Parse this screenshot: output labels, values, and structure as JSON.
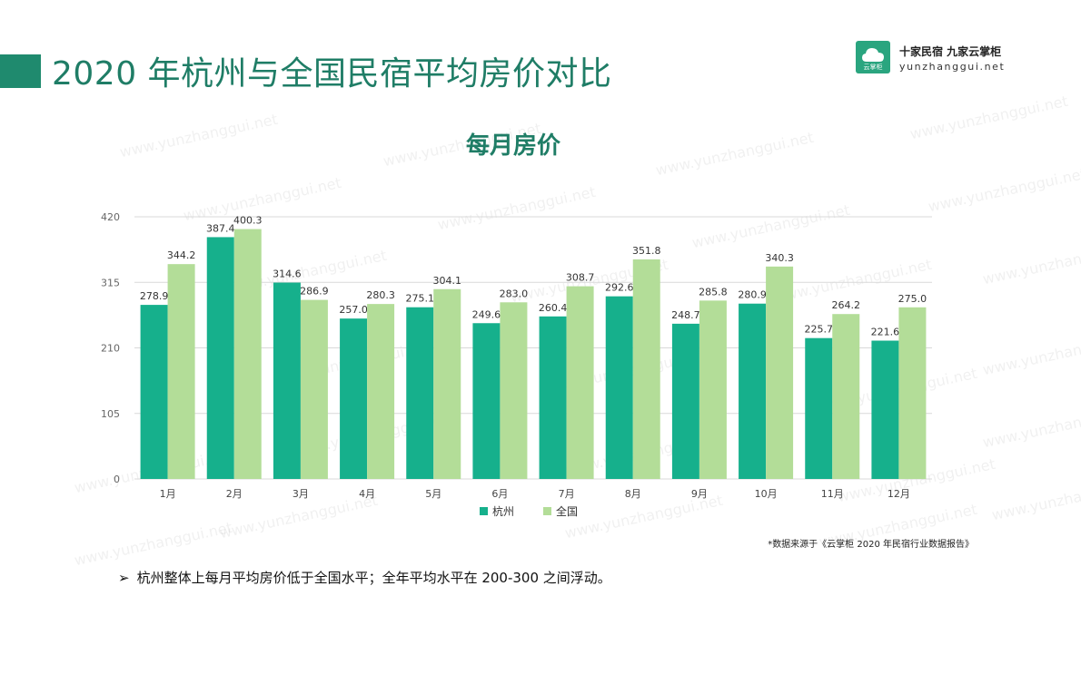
{
  "header": {
    "title": "2020 年杭州与全国民宿平均房价对比",
    "brand_name": "十家民宿 九家云掌柜",
    "brand_url": "yunzhanggui.net",
    "logo_text": "云掌柜"
  },
  "watermark_text": "www.yunzhanggui.net",
  "chart_data": {
    "type": "bar",
    "title": "每月房价",
    "categories": [
      "1月",
      "2月",
      "3月",
      "4月",
      "5月",
      "6月",
      "7月",
      "8月",
      "9月",
      "10月",
      "11月",
      "12月"
    ],
    "series": [
      {
        "name": "杭州",
        "color": "#16b08c",
        "values": [
          278.9,
          387.4,
          314.6,
          257.0,
          275.1,
          249.6,
          260.4,
          292.6,
          248.7,
          280.9,
          225.7,
          221.6
        ]
      },
      {
        "name": "全国",
        "color": "#b3dd98",
        "values": [
          344.2,
          400.3,
          286.9,
          280.3,
          304.1,
          283.0,
          308.7,
          351.8,
          285.8,
          340.3,
          264.2,
          275.0
        ]
      }
    ],
    "yticks": [
      "0",
      "105",
      "210",
      "315",
      "420"
    ],
    "ylim": [
      0,
      420
    ],
    "grid": true,
    "legend_position": "bottom"
  },
  "footer": {
    "source": "*数据来源于《云掌柜 2020 年民宿行业数据报告》",
    "bullet_arrow": "➢",
    "bullet_text": "杭州整体上每月平均房价低于全国水平；全年平均水平在 200-300 之间浮动。"
  },
  "colors": {
    "accent": "#1f8a6e",
    "title_text": "#1f7d66"
  }
}
